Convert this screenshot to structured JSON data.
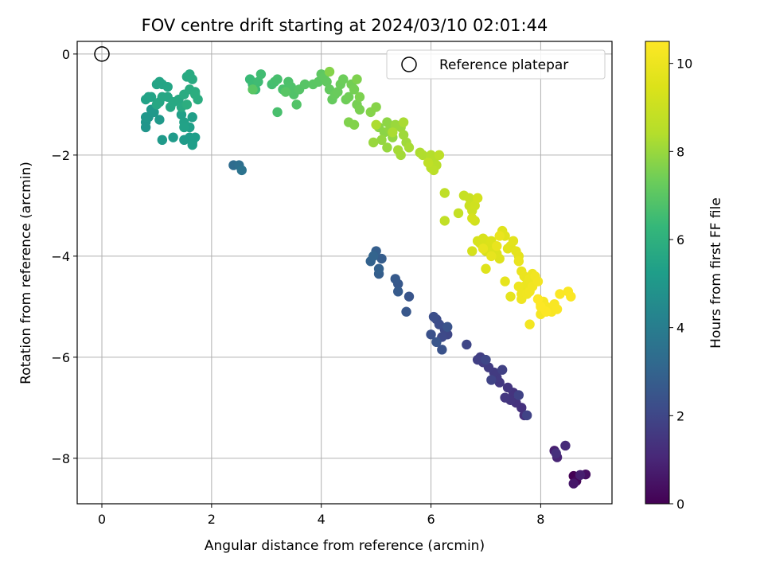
{
  "chart_data": {
    "type": "scatter",
    "title": "FOV centre drift starting at 2024/03/10 02:01:44",
    "xlabel": "Angular distance from reference (arcmin)",
    "ylabel": "Rotation from reference (arcmin)",
    "xlim": [
      -0.45,
      9.3
    ],
    "ylim": [
      -8.9,
      0.25
    ],
    "xticks": [
      0,
      2,
      4,
      6,
      8
    ],
    "xtick_labels": [
      "0",
      "2",
      "4",
      "6",
      "8"
    ],
    "yticks": [
      0,
      -2,
      -4,
      -6,
      -8
    ],
    "ytick_labels": [
      "0",
      "−2",
      "−4",
      "−6",
      "−8"
    ],
    "grid": true,
    "legend_position": "top-right",
    "colormap": "viridis",
    "colorbar": {
      "label": "Hours from first FF file",
      "range": [
        0,
        10.5
      ],
      "ticks": [
        0,
        2,
        4,
        6,
        8,
        10
      ],
      "tick_labels": [
        "0",
        "2",
        "4",
        "6",
        "8",
        "10"
      ]
    },
    "reference": {
      "name": "Reference platepar",
      "x": 0,
      "y": 0,
      "marker": "open-circle"
    },
    "series": [
      {
        "color_value_range": [
          0.0,
          0.8
        ],
        "points": [
          [
            8.6,
            -8.35
          ],
          [
            8.65,
            -8.45
          ],
          [
            8.82,
            -8.32
          ],
          [
            8.6,
            -8.5
          ],
          [
            8.72,
            -8.33
          ]
        ]
      },
      {
        "color_value_range": [
          0.8,
          1.3
        ],
        "points": [
          [
            8.25,
            -7.85
          ],
          [
            8.3,
            -7.98
          ],
          [
            8.45,
            -7.75
          ],
          [
            8.28,
            -7.9
          ]
        ]
      },
      {
        "color_value_range": [
          1.3,
          2.0
        ],
        "points": [
          [
            7.7,
            -7.15
          ],
          [
            7.65,
            -7.0
          ],
          [
            7.55,
            -6.9
          ],
          [
            7.5,
            -6.7
          ],
          [
            7.45,
            -6.85
          ],
          [
            7.4,
            -6.6
          ],
          [
            7.35,
            -6.8
          ],
          [
            7.25,
            -6.5
          ],
          [
            7.2,
            -6.4
          ],
          [
            7.15,
            -6.3
          ],
          [
            7.05,
            -6.2
          ],
          [
            6.95,
            -6.1
          ],
          [
            6.9,
            -6.0
          ],
          [
            6.85,
            -6.05
          ],
          [
            7.3,
            -6.25
          ],
          [
            7.6,
            -6.75
          ],
          [
            7.75,
            -7.15
          ],
          [
            7.1,
            -6.45
          ],
          [
            6.65,
            -5.75
          ],
          [
            7.0,
            -6.05
          ]
        ]
      },
      {
        "color_value_range": [
          2.0,
          2.5
        ],
        "points": [
          [
            6.3,
            -5.55
          ],
          [
            6.25,
            -5.45
          ],
          [
            6.2,
            -5.6
          ],
          [
            6.1,
            -5.25
          ],
          [
            6.15,
            -5.35
          ],
          [
            6.05,
            -5.2
          ],
          [
            6.0,
            -5.55
          ],
          [
            6.2,
            -5.85
          ],
          [
            6.3,
            -5.4
          ],
          [
            6.1,
            -5.7
          ]
        ]
      },
      {
        "color_value_range": [
          2.5,
          3.0
        ],
        "points": [
          [
            5.6,
            -4.8
          ],
          [
            5.55,
            -5.1
          ],
          [
            5.4,
            -4.55
          ],
          [
            5.35,
            -4.45
          ],
          [
            5.4,
            -4.7
          ],
          [
            5.1,
            -4.05
          ],
          [
            5.05,
            -4.35
          ],
          [
            5.0,
            -3.9
          ],
          [
            5.05,
            -4.25
          ],
          [
            4.9,
            -4.1
          ],
          [
            4.95,
            -4.0
          ]
        ]
      },
      {
        "color_value_range": [
          3.3,
          3.6
        ],
        "points": [
          [
            2.4,
            -2.2
          ],
          [
            2.5,
            -2.2
          ],
          [
            2.55,
            -2.3
          ]
        ]
      },
      {
        "color_value_range": [
          4.9,
          5.4
        ],
        "points": [
          [
            0.8,
            -1.45
          ],
          [
            0.8,
            -1.35
          ],
          [
            0.85,
            -1.25
          ],
          [
            0.8,
            -1.25
          ],
          [
            0.95,
            -1.15
          ],
          [
            0.9,
            -1.1
          ],
          [
            1.05,
            -1.3
          ],
          [
            1.1,
            -1.7
          ],
          [
            1.3,
            -1.65
          ],
          [
            1.5,
            -1.7
          ],
          [
            1.6,
            -1.65
          ],
          [
            1.65,
            -1.75
          ],
          [
            1.65,
            -1.8
          ],
          [
            1.7,
            -1.65
          ],
          [
            1.65,
            -1.25
          ],
          [
            1.6,
            -1.45
          ],
          [
            1.45,
            -1.2
          ],
          [
            1.5,
            -1.35
          ],
          [
            1.5,
            -1.45
          ]
        ]
      },
      {
        "color_value_range": [
          5.4,
          5.9
        ],
        "points": [
          [
            0.8,
            -0.9
          ],
          [
            0.85,
            -0.85
          ],
          [
            0.9,
            -0.85
          ],
          [
            1.0,
            -0.6
          ],
          [
            1.05,
            -0.55
          ],
          [
            1.1,
            -0.6
          ],
          [
            1.2,
            -0.65
          ],
          [
            1.05,
            -0.95
          ],
          [
            1.1,
            -0.85
          ],
          [
            1.2,
            -0.85
          ],
          [
            1.0,
            -1.0
          ],
          [
            1.25,
            -1.05
          ],
          [
            1.3,
            -0.95
          ],
          [
            1.4,
            -0.9
          ],
          [
            1.45,
            -1.05
          ],
          [
            1.55,
            -0.45
          ],
          [
            1.6,
            -0.4
          ],
          [
            1.65,
            -0.5
          ],
          [
            1.5,
            -0.8
          ],
          [
            1.6,
            -0.7
          ],
          [
            1.7,
            -0.75
          ],
          [
            1.75,
            -0.9
          ],
          [
            1.7,
            -0.8
          ],
          [
            1.55,
            -1.0
          ]
        ]
      },
      {
        "color_value_range": [
          6.4,
          7.0
        ],
        "points": [
          [
            2.7,
            -0.5
          ],
          [
            2.75,
            -0.6
          ],
          [
            2.8,
            -0.7
          ],
          [
            2.85,
            -0.55
          ],
          [
            2.9,
            -0.4
          ],
          [
            3.1,
            -0.6
          ],
          [
            3.15,
            -0.55
          ],
          [
            3.2,
            -0.5
          ],
          [
            3.2,
            -1.15
          ],
          [
            3.3,
            -0.7
          ],
          [
            3.4,
            -0.55
          ],
          [
            3.45,
            -0.65
          ],
          [
            3.5,
            -0.8
          ],
          [
            3.55,
            -1.0
          ],
          [
            3.6,
            -0.7
          ],
          [
            3.7,
            -0.6
          ],
          [
            3.35,
            -0.75
          ],
          [
            2.75,
            -0.7
          ]
        ]
      },
      {
        "color_value_range": [
          7.0,
          7.7
        ],
        "points": [
          [
            3.85,
            -0.6
          ],
          [
            3.95,
            -0.55
          ],
          [
            4.0,
            -0.4
          ],
          [
            4.05,
            -0.45
          ],
          [
            4.1,
            -0.55
          ],
          [
            4.15,
            -0.7
          ],
          [
            4.2,
            -0.9
          ],
          [
            4.25,
            -0.8
          ],
          [
            4.3,
            -0.75
          ],
          [
            4.35,
            -0.6
          ],
          [
            4.4,
            -0.5
          ],
          [
            4.45,
            -0.9
          ],
          [
            4.5,
            -0.85
          ],
          [
            4.55,
            -0.6
          ],
          [
            4.6,
            -0.7
          ],
          [
            4.65,
            -1.0
          ],
          [
            4.7,
            -1.1
          ],
          [
            4.7,
            -0.85
          ],
          [
            4.65,
            -0.5
          ],
          [
            4.5,
            -1.35
          ],
          [
            4.6,
            -1.4
          ],
          [
            4.15,
            -0.35
          ]
        ]
      },
      {
        "color_value_range": [
          7.7,
          8.3
        ],
        "points": [
          [
            4.9,
            -1.15
          ],
          [
            5.0,
            -1.05
          ],
          [
            5.05,
            -1.45
          ],
          [
            5.15,
            -1.55
          ],
          [
            5.2,
            -1.35
          ],
          [
            5.25,
            -1.5
          ],
          [
            5.3,
            -1.65
          ],
          [
            5.1,
            -1.7
          ],
          [
            5.2,
            -1.85
          ],
          [
            4.95,
            -1.75
          ],
          [
            5.35,
            -1.4
          ],
          [
            5.45,
            -1.45
          ],
          [
            5.5,
            -1.6
          ],
          [
            5.55,
            -1.75
          ],
          [
            5.45,
            -2.0
          ],
          [
            5.4,
            -1.9
          ],
          [
            5.6,
            -1.85
          ],
          [
            5.5,
            -1.35
          ],
          [
            5.3,
            -1.55
          ],
          [
            5.0,
            -1.4
          ]
        ]
      },
      {
        "color_value_range": [
          8.3,
          8.7
        ],
        "points": [
          [
            5.8,
            -1.95
          ],
          [
            5.85,
            -2.0
          ],
          [
            6.0,
            -2.0
          ],
          [
            6.05,
            -2.1
          ],
          [
            6.1,
            -2.2
          ],
          [
            6.0,
            -2.25
          ],
          [
            6.05,
            -2.3
          ],
          [
            6.15,
            -2.0
          ],
          [
            5.95,
            -2.15
          ]
        ]
      },
      {
        "color_value_range": [
          8.7,
          9.3
        ],
        "points": [
          [
            6.25,
            -2.75
          ],
          [
            6.25,
            -3.3
          ],
          [
            6.5,
            -3.15
          ],
          [
            6.6,
            -2.8
          ],
          [
            6.7,
            -2.85
          ],
          [
            6.7,
            -3.0
          ],
          [
            6.75,
            -3.1
          ],
          [
            6.8,
            -3.0
          ],
          [
            6.8,
            -3.3
          ],
          [
            6.85,
            -2.85
          ],
          [
            6.75,
            -3.25
          ]
        ]
      },
      {
        "color_value_range": [
          9.3,
          9.9
        ],
        "points": [
          [
            6.75,
            -3.9
          ],
          [
            6.85,
            -3.7
          ],
          [
            6.9,
            -3.75
          ],
          [
            6.95,
            -3.65
          ],
          [
            7.0,
            -3.7
          ],
          [
            7.0,
            -3.9
          ],
          [
            7.05,
            -3.8
          ],
          [
            7.1,
            -3.7
          ],
          [
            7.15,
            -3.9
          ],
          [
            7.2,
            -3.95
          ],
          [
            7.25,
            -4.05
          ],
          [
            7.0,
            -4.25
          ],
          [
            7.3,
            -3.5
          ],
          [
            7.35,
            -3.6
          ],
          [
            7.4,
            -3.85
          ],
          [
            7.45,
            -3.8
          ],
          [
            7.5,
            -3.7
          ],
          [
            7.55,
            -3.9
          ],
          [
            7.6,
            -4.0
          ],
          [
            7.35,
            -4.5
          ],
          [
            7.45,
            -4.8
          ],
          [
            7.1,
            -4.0
          ],
          [
            6.95,
            -3.85
          ],
          [
            7.2,
            -3.8
          ],
          [
            7.25,
            -3.6
          ]
        ]
      },
      {
        "color_value_range": [
          9.9,
          10.5
        ],
        "points": [
          [
            7.6,
            -4.1
          ],
          [
            7.65,
            -4.3
          ],
          [
            7.7,
            -4.4
          ],
          [
            7.7,
            -4.6
          ],
          [
            7.75,
            -4.55
          ],
          [
            7.8,
            -4.45
          ],
          [
            7.85,
            -4.35
          ],
          [
            7.6,
            -4.6
          ],
          [
            7.65,
            -4.75
          ],
          [
            7.65,
            -4.85
          ],
          [
            7.75,
            -4.75
          ],
          [
            7.8,
            -4.7
          ],
          [
            7.85,
            -4.6
          ],
          [
            7.9,
            -4.4
          ],
          [
            7.95,
            -4.5
          ],
          [
            7.8,
            -5.35
          ],
          [
            8.0,
            -4.95
          ],
          [
            8.05,
            -5.05
          ],
          [
            8.0,
            -5.15
          ],
          [
            8.05,
            -4.9
          ],
          [
            8.1,
            -5.0
          ],
          [
            8.15,
            -5.05
          ],
          [
            8.2,
            -5.1
          ],
          [
            8.25,
            -4.95
          ],
          [
            8.3,
            -5.05
          ],
          [
            8.35,
            -4.75
          ],
          [
            8.5,
            -4.7
          ],
          [
            8.55,
            -4.8
          ],
          [
            8.1,
            -5.1
          ],
          [
            8.0,
            -5.0
          ],
          [
            7.95,
            -4.85
          ]
        ]
      }
    ]
  }
}
